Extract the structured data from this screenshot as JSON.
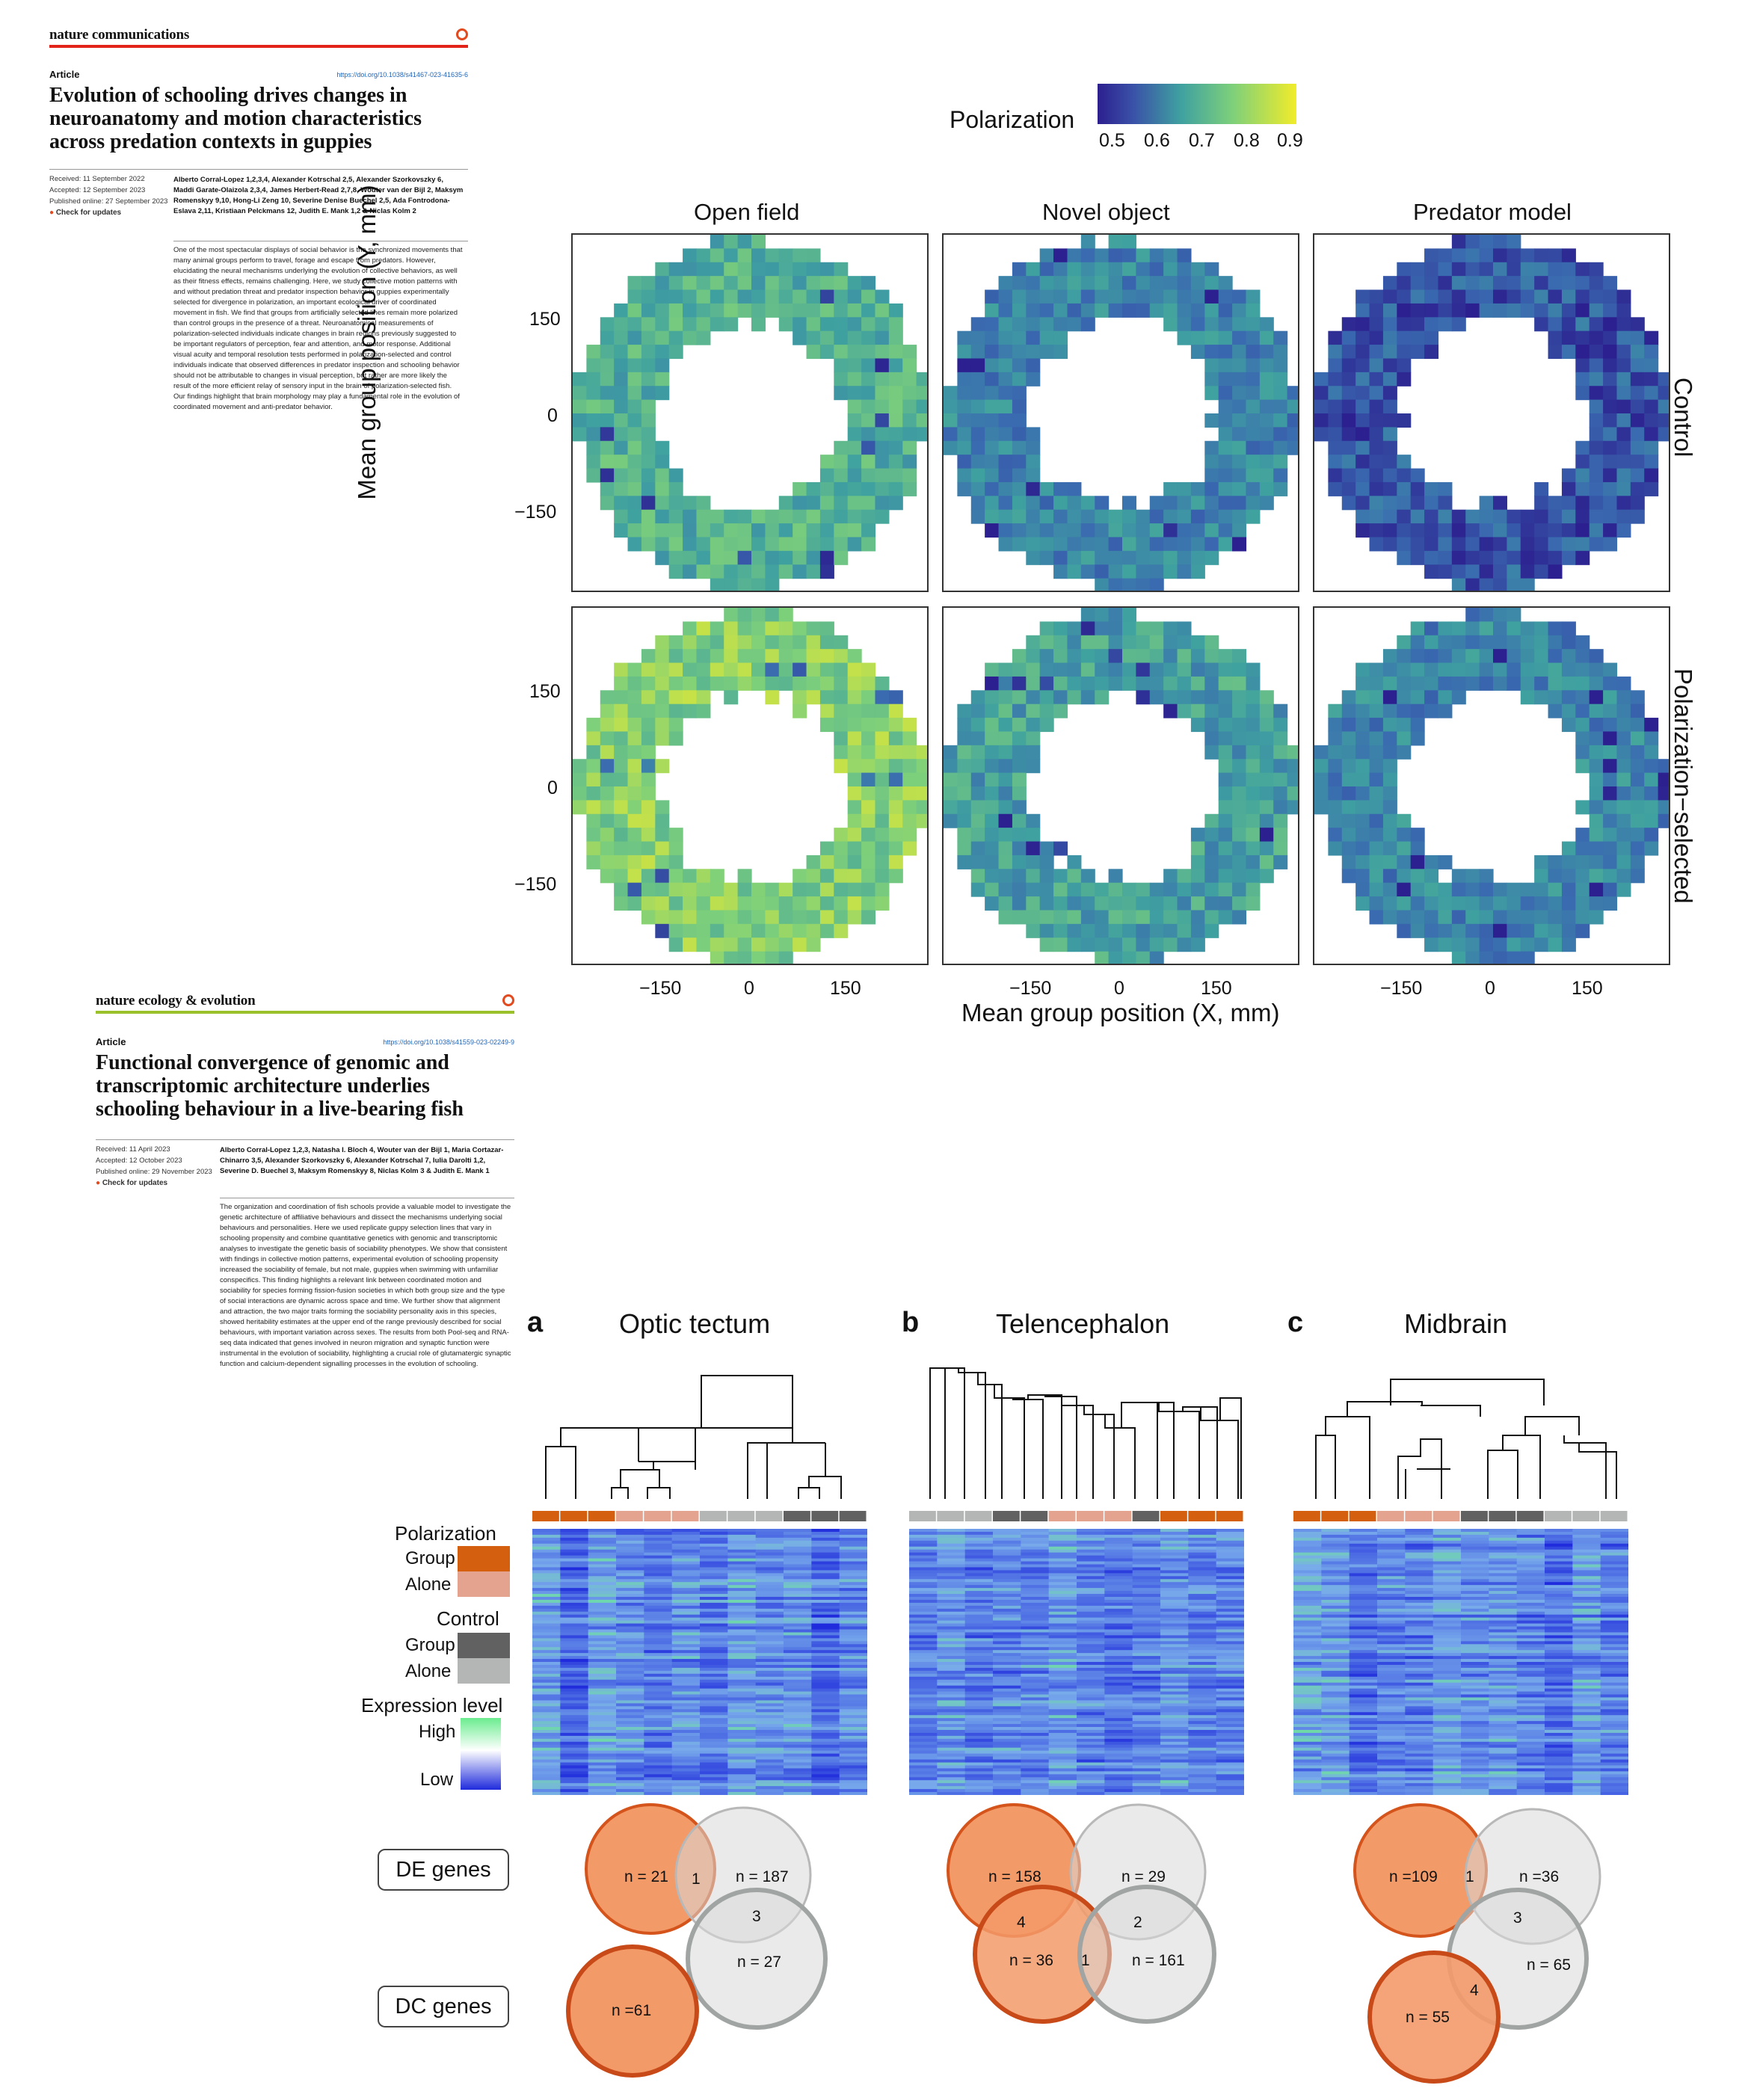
{
  "paper1": {
    "journal": "nature communications",
    "article_label": "Article",
    "doi": "https://doi.org/10.1038/s41467-023-41635-6",
    "title": "Evolution of schooling drives changes in neuroanatomy and motion characteristics across predation contexts in guppies",
    "received": "Received: 11 September 2022",
    "accepted": "Accepted: 12 September 2023",
    "published": "Published online: 27 September 2023",
    "check_updates": "Check for updates",
    "authors": "Alberto Corral-Lopez 1,2,3,4, Alexander Kotrschal 2,5, Alexander Szorkovszky 6, Maddi Garate-Olaizola 2,3,4, James Herbert-Read 2,7,8, Wouter van der Bijl 2, Maksym Romenskyy 9,10, Hong-Li Zeng 10, Severine Denise Buechel 2,5, Ada Fontrodona-Eslava 2,11, Kristiaan Pelckmans 12, Judith E. Mank 1,2 & Niclas Kolm 2",
    "abstract": "One of the most spectacular displays of social behavior is the synchronized movements that many animal groups perform to travel, forage and escape from predators. However, elucidating the neural mechanisms underlying the evolution of collective behaviors, as well as their fitness effects, remains challenging. Here, we study collective motion patterns with and without predation threat and predator inspection behavior in guppies experimentally selected for divergence in polarization, an important ecological driver of coordinated movement in fish. We find that groups from artificially selected lines remain more polarized than control groups in the presence of a threat. Neuroanatomical measurements of polarization-selected individuals indicate changes in brain regions previously suggested to be important regulators of perception, fear and attention, and motor response. Additional visual acuity and temporal resolution tests performed in polarization-selected and control individuals indicate that observed differences in predator inspection and schooling behavior should not be attributable to changes in visual perception, but rather are more likely the result of the more efficient relay of sensory input in the brain of polarization-selected fish. Our findings highlight that brain morphology may play a fundamental role in the evolution of coordinated movement and anti-predator behavior."
  },
  "paper2": {
    "journal": "nature ecology & evolution",
    "article_label": "Article",
    "doi": "https://doi.org/10.1038/s41559-023-02249-9",
    "title": "Functional convergence of genomic and transcriptomic architecture underlies schooling behaviour in a live-bearing fish",
    "received": "Received: 11 April 2023",
    "accepted": "Accepted: 12 October 2023",
    "published": "Published online: 29 November 2023",
    "check_updates": "Check for updates",
    "authors": "Alberto Corral-Lopez 1,2,3, Natasha I. Bloch 4, Wouter van der Bijl 1, Maria Cortazar-Chinarro 3,5, Alexander Szorkovszky 6, Alexander Kotrschal 7, Iulia Darolti 1,2, Severine D. Buechel 3, Maksym Romenskyy 8, Niclas Kolm 3 & Judith E. Mank 1",
    "abstract": "The organization and coordination of fish schools provide a valuable model to investigate the genetic architecture of affiliative behaviours and dissect the mechanisms underlying social behaviours and personalities. Here we used replicate guppy selection lines that vary in schooling propensity and combine quantitative genetics with genomic and transcriptomic analyses to investigate the genetic basis of sociability phenotypes. We show that consistent with findings in collective motion patterns, experimental evolution of schooling propensity increased the sociability of female, but not male, guppies when swimming with unfamiliar conspecifics. This finding highlights a relevant link between coordinated motion and sociability for species forming fission-fusion societies in which both group size and the type of social interactions are dynamic across space and time. We further show that alignment and attraction, the two major traits forming the sociability personality axis in this species, showed heritability estimates at the upper end of the range previously described for social behaviours, with important variation across sexes. The results from both Pool-seq and RNA-seq data indicated that genes involved in neuron migration and synaptic function were instrumental in the evolution of sociability, highlighting a crucial role of glutamatergic synaptic function and calcium-dependent signalling processes in the evolution of schooling."
  },
  "polar_fig": {
    "legend_title": "Polarization",
    "legend_ticks": [
      "0.5",
      "0.6",
      "0.7",
      "0.8",
      "0.9"
    ],
    "columns": [
      "Open field",
      "Novel object",
      "Predator model"
    ],
    "rows": [
      "Control",
      "Polarization−selected"
    ],
    "ylabel": "Mean group position (Y, mm)",
    "xlabel": "Mean group position (X, mm)",
    "yticks": [
      "150",
      "0",
      "−150"
    ],
    "xticks": [
      "−150",
      "0",
      "150"
    ],
    "colors": {
      "low": "#2c1f8f",
      "mid": "#3fa1a0",
      "high": "#f1ec2a"
    }
  },
  "expr_fig": {
    "panels": [
      {
        "letter": "a",
        "title": "Optic tectum"
      },
      {
        "letter": "b",
        "title": "Telencephalon"
      },
      {
        "letter": "c",
        "title": "Midbrain"
      }
    ],
    "legend": {
      "polarization": "Polarization",
      "control": "Control",
      "group": "Group",
      "alone": "Alone",
      "expression": "Expression level",
      "high": "High",
      "low": "Low"
    },
    "colors": {
      "pol_group": "#d4600f",
      "pol_alone": "#e3a38f",
      "ctl_group": "#616161",
      "ctl_alone": "#b3b6b4",
      "circle_fill": "#f39a69",
      "circle_stroke": "#d4541c"
    },
    "row_labels": [
      "DE genes",
      "DC genes"
    ],
    "venns": [
      {
        "left": "n = 21",
        "overlap_lr": "1",
        "right": "n = 187",
        "center": "3",
        "bottom_right": "n = 27",
        "bottom_left": "n =61"
      },
      {
        "left": "n = 158",
        "right": "n = 29",
        "overlap_diag_left": "4",
        "center": "2",
        "bottom_left": "n = 36",
        "overlap_bottom": "1",
        "bottom_right": "n = 161"
      },
      {
        "left": "n =109",
        "overlap_lr": "1",
        "right": "n =36",
        "center": "3",
        "bottom_right": "n = 65",
        "overlap_bottom": "4",
        "bottom_left": "n = 55"
      }
    ]
  }
}
